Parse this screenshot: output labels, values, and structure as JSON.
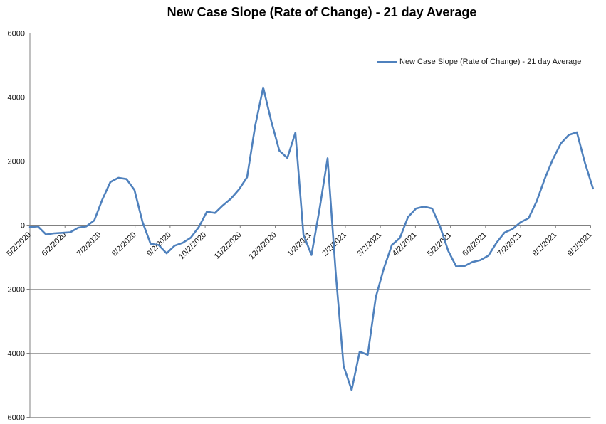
{
  "chart_data": {
    "type": "line",
    "title": "New Case Slope (Rate of Change) - 21 day Average",
    "legend_entries": [
      "New Case Slope (Rate of Change) - 21 day Average"
    ],
    "legend_position": "top-right-inside",
    "grid": true,
    "x_label_rotation_deg": 45,
    "x_range": [
      "2020-05-02",
      "2021-09-02"
    ],
    "x_tick_labels": [
      "5/2/2020",
      "6/2/2020",
      "7/2/2020",
      "8/2/2020",
      "9/2/2020",
      "10/2/2020",
      "11/2/2020",
      "12/2/2020",
      "1/2/2021",
      "2/2/2021",
      "3/2/2021",
      "4/2/2021",
      "5/2/2021",
      "6/2/2021",
      "7/2/2021",
      "8/2/2021",
      "9/2/2021"
    ],
    "ylim": [
      -6000,
      6000
    ],
    "y_tick_step": 2000,
    "y_tick_labels": [
      "6000",
      "4000",
      "2000",
      "0",
      "-2000",
      "-4000",
      "-6000"
    ],
    "series": [
      {
        "name": "New Case Slope (Rate of Change) - 21 day Average",
        "color": "#4f81bd",
        "points": [
          [
            "2020-05-02",
            -60
          ],
          [
            "2020-05-09",
            -40
          ],
          [
            "2020-05-16",
            -290
          ],
          [
            "2020-05-23",
            -255
          ],
          [
            "2020-05-30",
            -240
          ],
          [
            "2020-06-06",
            -225
          ],
          [
            "2020-06-13",
            -80
          ],
          [
            "2020-06-20",
            -40
          ],
          [
            "2020-06-27",
            150
          ],
          [
            "2020-07-04",
            800
          ],
          [
            "2020-07-11",
            1350
          ],
          [
            "2020-07-18",
            1480
          ],
          [
            "2020-07-25",
            1440
          ],
          [
            "2020-08-01",
            1100
          ],
          [
            "2020-08-08",
            100
          ],
          [
            "2020-08-15",
            -580
          ],
          [
            "2020-08-22",
            -620
          ],
          [
            "2020-08-29",
            -880
          ],
          [
            "2020-09-05",
            -640
          ],
          [
            "2020-09-12",
            -550
          ],
          [
            "2020-09-19",
            -390
          ],
          [
            "2020-09-26",
            -60
          ],
          [
            "2020-10-03",
            420
          ],
          [
            "2020-10-10",
            380
          ],
          [
            "2020-10-17",
            620
          ],
          [
            "2020-10-24",
            830
          ],
          [
            "2020-10-31",
            1120
          ],
          [
            "2020-11-07",
            1500
          ],
          [
            "2020-11-14",
            3100
          ],
          [
            "2020-11-21",
            4300
          ],
          [
            "2020-11-28",
            3250
          ],
          [
            "2020-12-05",
            2330
          ],
          [
            "2020-12-12",
            2100
          ],
          [
            "2020-12-19",
            2890
          ],
          [
            "2020-12-26",
            -300
          ],
          [
            "2021-01-02",
            -930
          ],
          [
            "2021-01-09",
            500
          ],
          [
            "2021-01-16",
            2090
          ],
          [
            "2021-01-23",
            -1450
          ],
          [
            "2021-01-30",
            -4400
          ],
          [
            "2021-02-06",
            -5150
          ],
          [
            "2021-02-13",
            -3950
          ],
          [
            "2021-02-20",
            -4050
          ],
          [
            "2021-02-27",
            -2250
          ],
          [
            "2021-03-06",
            -1350
          ],
          [
            "2021-03-13",
            -620
          ],
          [
            "2021-03-20",
            -400
          ],
          [
            "2021-03-27",
            250
          ],
          [
            "2021-04-03",
            520
          ],
          [
            "2021-04-10",
            580
          ],
          [
            "2021-04-17",
            520
          ],
          [
            "2021-04-24",
            -50
          ],
          [
            "2021-05-01",
            -800
          ],
          [
            "2021-05-08",
            -1290
          ],
          [
            "2021-05-15",
            -1280
          ],
          [
            "2021-05-22",
            -1150
          ],
          [
            "2021-05-29",
            -1090
          ],
          [
            "2021-06-05",
            -950
          ],
          [
            "2021-06-12",
            -550
          ],
          [
            "2021-06-19",
            -230
          ],
          [
            "2021-06-26",
            -120
          ],
          [
            "2021-07-03",
            90
          ],
          [
            "2021-07-10",
            220
          ],
          [
            "2021-07-17",
            750
          ],
          [
            "2021-07-24",
            1450
          ],
          [
            "2021-07-31",
            2050
          ],
          [
            "2021-08-07",
            2550
          ],
          [
            "2021-08-14",
            2820
          ],
          [
            "2021-08-21",
            2900
          ],
          [
            "2021-08-28",
            1950
          ],
          [
            "2021-09-04",
            1150
          ]
        ]
      }
    ]
  },
  "colors": {
    "line": "#4f81bd",
    "gridline": "#a6a6a6",
    "axis": "#808080",
    "tick": "#808080",
    "text": "#111111",
    "background": "#ffffff"
  }
}
